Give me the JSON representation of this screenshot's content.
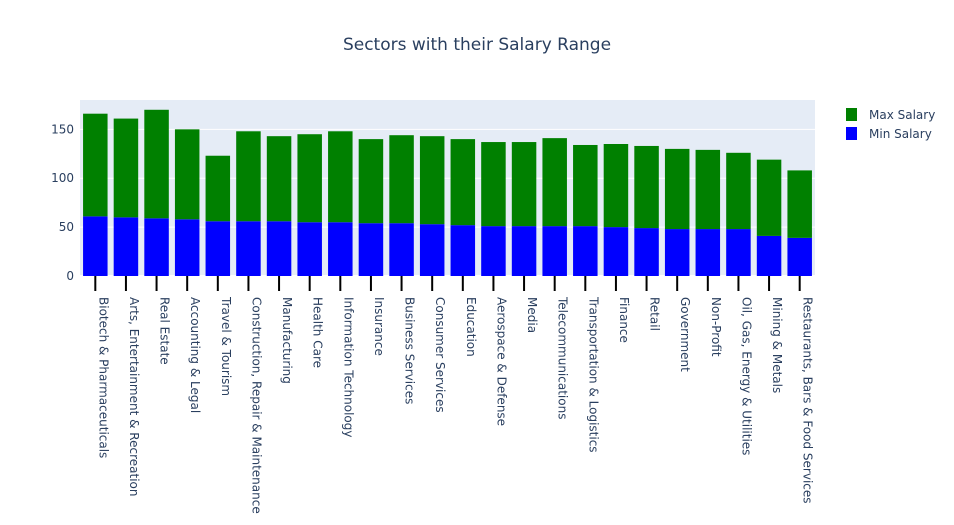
{
  "chart_data": {
    "type": "bar",
    "barmode": "stack",
    "title": "Sectors with their Salary Range",
    "xlabel": "",
    "ylabel": "",
    "ylim": [
      0,
      180
    ],
    "yticks": [
      0,
      50,
      100,
      150
    ],
    "grid": true,
    "legend_position": "top-right",
    "categories": [
      "Biotech & Pharmaceuticals",
      "Arts, Entertainment & Recreation",
      "Real Estate",
      "Accounting & Legal",
      "Travel & Tourism",
      "Construction, Repair & Maintenance",
      "Manufacturing",
      "Health Care",
      "Information Technology",
      "Insurance",
      "Business Services",
      "Consumer Services",
      "Education",
      "Aerospace & Defense",
      "Media",
      "Telecommunications",
      "Transportation & Logistics",
      "Finance",
      "Retail",
      "Government",
      "Non-Profit",
      "Oil, Gas, Energy & Utilities",
      "Mining & Metals",
      "Restaurants, Bars & Food Services"
    ],
    "series": [
      {
        "name": "Min Salary",
        "color": "#0000ff",
        "values": [
          61,
          60,
          59,
          58,
          56,
          56,
          56,
          55,
          55,
          54,
          54,
          53,
          52,
          51,
          51,
          51,
          51,
          50,
          49,
          48,
          48,
          48,
          41,
          39
        ]
      },
      {
        "name": "Max Salary",
        "color": "#008000",
        "values": [
          105,
          101,
          111,
          92,
          67,
          92,
          87,
          90,
          93,
          86,
          90,
          90,
          88,
          86,
          86,
          90,
          83,
          85,
          84,
          82,
          81,
          78,
          78,
          69
        ]
      }
    ],
    "legend_order": [
      "Max Salary",
      "Min Salary"
    ]
  }
}
